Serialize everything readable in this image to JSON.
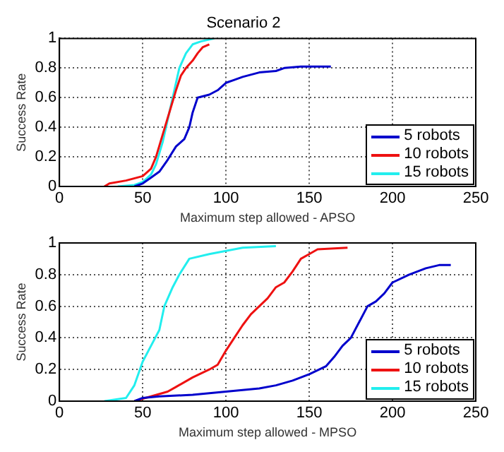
{
  "chart_data": [
    {
      "type": "line",
      "title": "Scenario 2",
      "xlabel": "Maximum step allowed - APSO",
      "ylabel": "Success Rate",
      "xlim": [
        0,
        250
      ],
      "xticks": [
        0,
        50,
        100,
        150,
        200,
        250
      ],
      "ylim": [
        0,
        1
      ],
      "yticks": [
        0,
        0.2,
        0.4,
        0.6,
        0.8,
        1
      ],
      "grid": true,
      "legend": "bottom right",
      "series": [
        {
          "name": "5 robots",
          "color": "#0000cc",
          "x": [
            45,
            50,
            55,
            60,
            65,
            70,
            75,
            78,
            80,
            83,
            90,
            95,
            100,
            105,
            110,
            120,
            130,
            135,
            145,
            163
          ],
          "values": [
            0,
            0.02,
            0.06,
            0.1,
            0.18,
            0.27,
            0.32,
            0.4,
            0.5,
            0.6,
            0.62,
            0.65,
            0.7,
            0.72,
            0.74,
            0.77,
            0.78,
            0.8,
            0.81,
            0.81
          ]
        },
        {
          "name": "10 robots",
          "color": "#ee1111",
          "x": [
            27,
            30,
            40,
            50,
            55,
            58,
            62,
            66,
            70,
            73,
            76,
            80,
            83,
            86,
            90
          ],
          "values": [
            0,
            0.02,
            0.04,
            0.07,
            0.12,
            0.2,
            0.35,
            0.5,
            0.65,
            0.75,
            0.8,
            0.85,
            0.9,
            0.94,
            0.96
          ]
        },
        {
          "name": "15 robots",
          "color": "#22eeee",
          "x": [
            35,
            45,
            50,
            55,
            58,
            62,
            65,
            68,
            72,
            76,
            80,
            85,
            93
          ],
          "values": [
            0,
            0.01,
            0.03,
            0.08,
            0.15,
            0.3,
            0.45,
            0.6,
            0.8,
            0.9,
            0.96,
            0.98,
            1
          ]
        }
      ]
    },
    {
      "type": "line",
      "xlabel": "Maximum step allowed - MPSO",
      "ylabel": "Success Rate",
      "xlim": [
        0,
        250
      ],
      "xticks": [
        0,
        50,
        100,
        150,
        200,
        250
      ],
      "ylim": [
        0,
        1
      ],
      "yticks": [
        0,
        0.2,
        0.4,
        0.6,
        0.8,
        1
      ],
      "grid": true,
      "legend": "bottom right",
      "series": [
        {
          "name": "5 robots",
          "color": "#0000cc",
          "x": [
            45,
            50,
            60,
            80,
            100,
            120,
            130,
            140,
            150,
            160,
            165,
            170,
            175,
            180,
            185,
            190,
            195,
            200,
            210,
            220,
            228,
            235
          ],
          "values": [
            0,
            0.02,
            0.03,
            0.04,
            0.06,
            0.08,
            0.1,
            0.13,
            0.17,
            0.22,
            0.28,
            0.35,
            0.4,
            0.5,
            0.6,
            0.63,
            0.68,
            0.75,
            0.8,
            0.84,
            0.86,
            0.86
          ]
        },
        {
          "name": "10 robots",
          "color": "#ee1111",
          "x": [
            45,
            55,
            65,
            70,
            80,
            90,
            95,
            100,
            105,
            110,
            115,
            120,
            125,
            130,
            135,
            140,
            145,
            150,
            155,
            173
          ],
          "values": [
            0,
            0.03,
            0.06,
            0.09,
            0.15,
            0.2,
            0.23,
            0.32,
            0.4,
            0.48,
            0.55,
            0.6,
            0.65,
            0.72,
            0.75,
            0.82,
            0.9,
            0.93,
            0.96,
            0.97
          ]
        },
        {
          "name": "15 robots",
          "color": "#22eeee",
          "x": [
            27,
            40,
            45,
            50,
            55,
            60,
            63,
            68,
            72,
            78,
            90,
            100,
            110,
            130
          ],
          "values": [
            0,
            0.02,
            0.1,
            0.25,
            0.35,
            0.45,
            0.6,
            0.72,
            0.8,
            0.9,
            0.93,
            0.95,
            0.97,
            0.98
          ]
        }
      ]
    }
  ]
}
